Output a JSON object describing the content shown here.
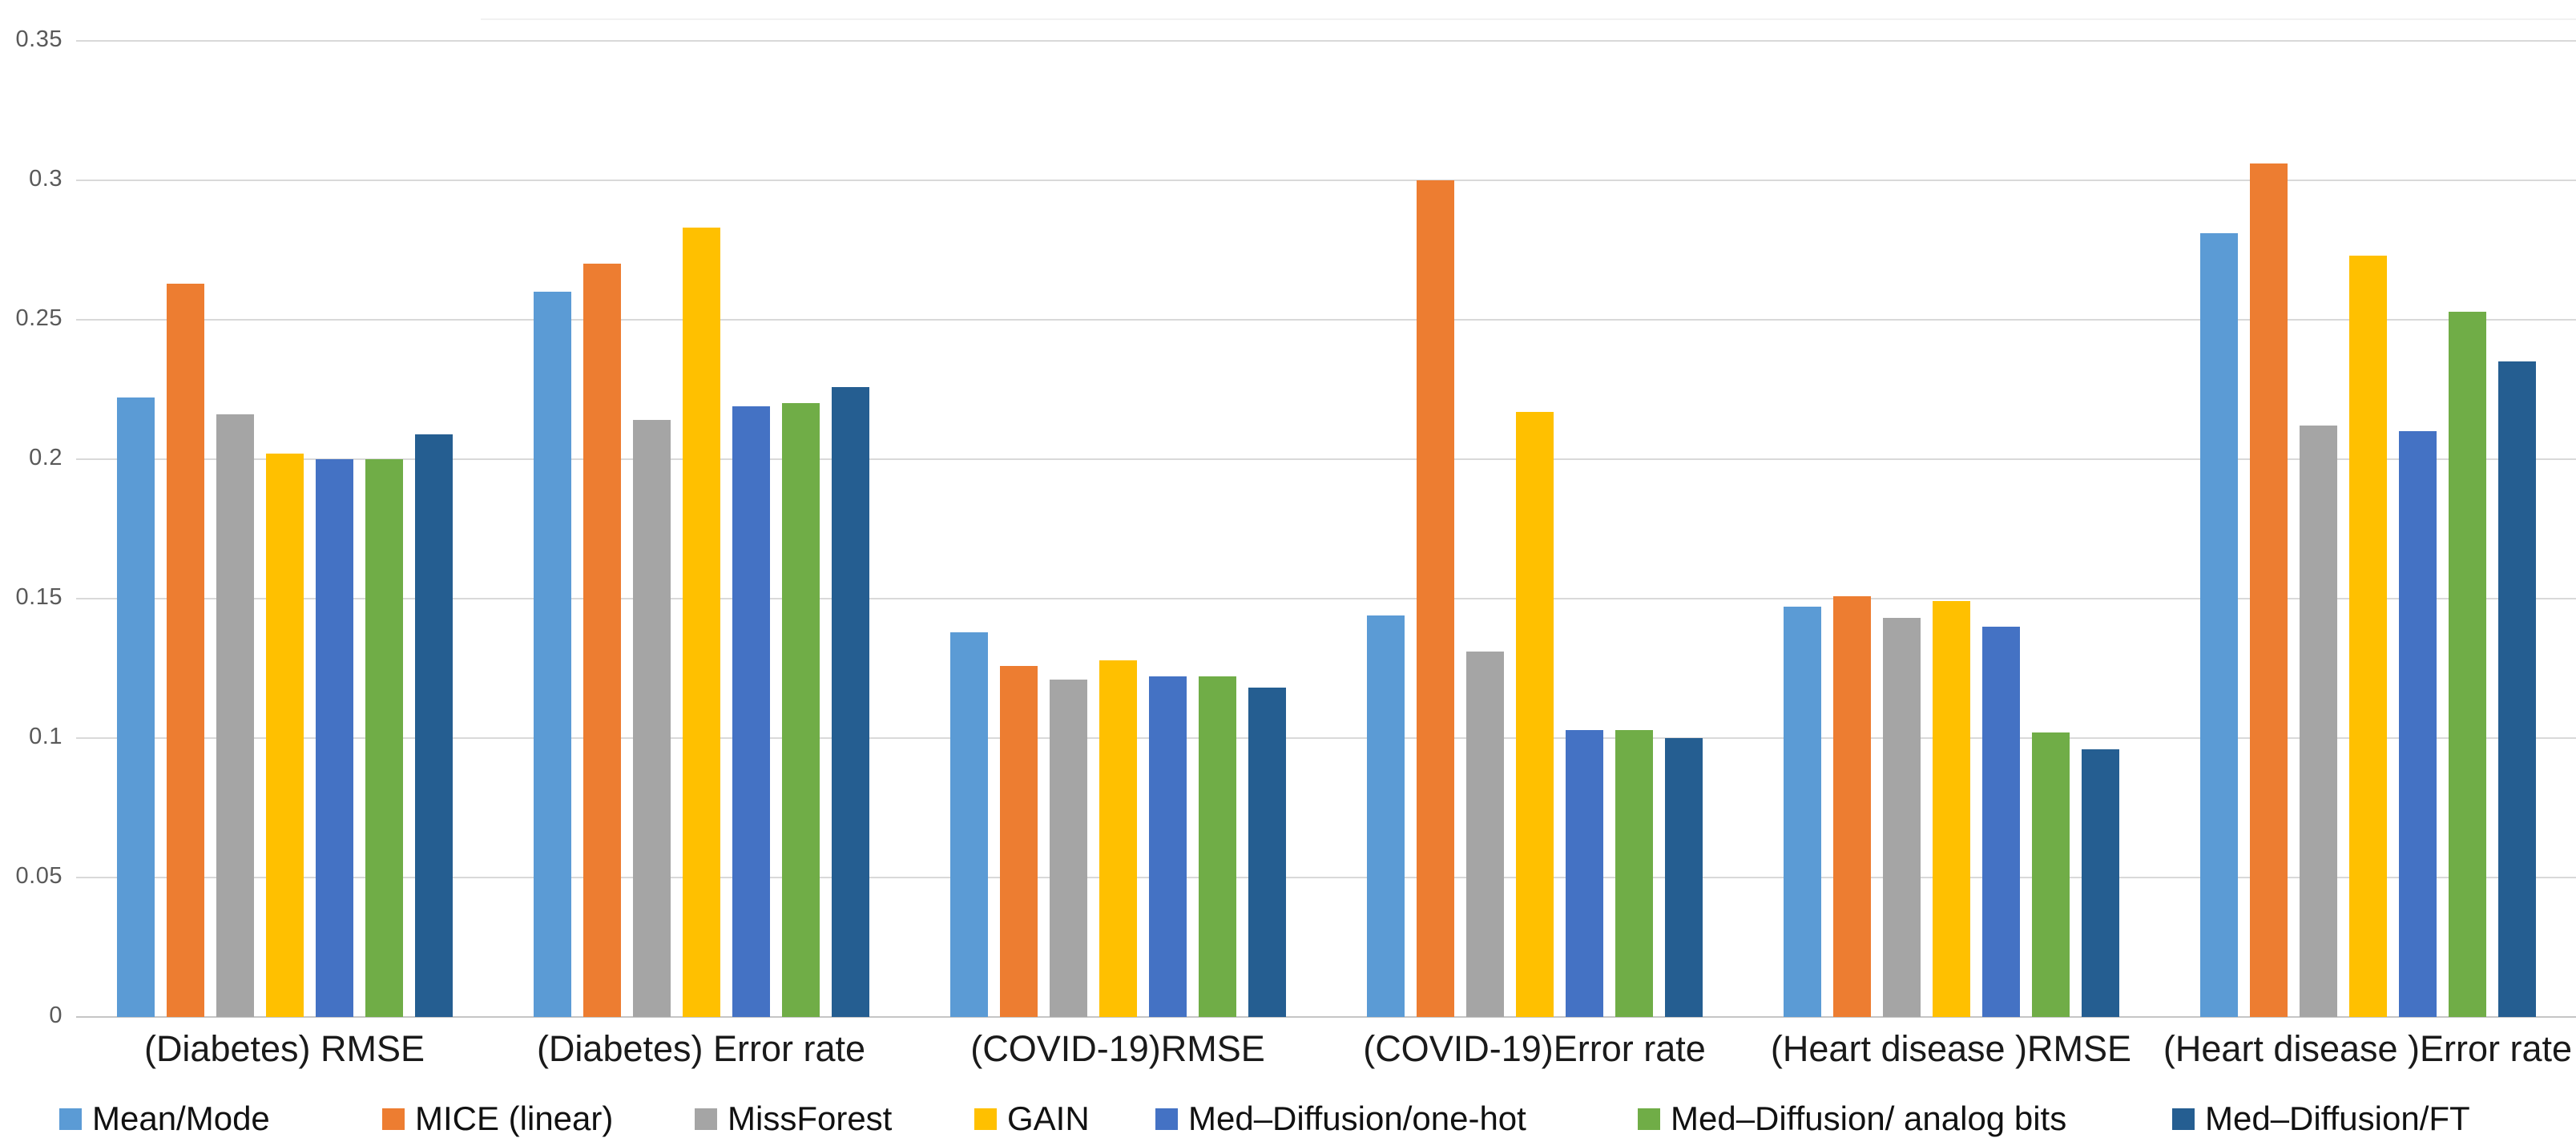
{
  "chart_data": {
    "type": "bar",
    "title": "",
    "xlabel": "",
    "ylabel": "",
    "ylim": [
      0,
      0.35
    ],
    "yticks": [
      0,
      0.05,
      0.1,
      0.15,
      0.2,
      0.25,
      0.3,
      0.35
    ],
    "ytick_labels": [
      "0",
      "0.05",
      "0.1",
      "0.15",
      "0.2",
      "0.25",
      "0.3",
      "0.35"
    ],
    "grid": true,
    "legend_position": "bottom",
    "categories": [
      "(Diabetes) RMSE",
      "(Diabetes) Error rate",
      "(COVID-19)RMSE",
      "(COVID-19)Error rate",
      "(Heart disease )RMSE",
      "(Heart disease )Error rate"
    ],
    "series": [
      {
        "name": "Mean/Mode",
        "color": "#5B9BD5",
        "values": [
          0.222,
          0.26,
          0.138,
          0.144,
          0.147,
          0.281
        ]
      },
      {
        "name": "MICE (linear)",
        "color": "#ED7D31",
        "values": [
          0.263,
          0.27,
          0.126,
          0.3,
          0.151,
          0.306
        ]
      },
      {
        "name": "MissForest",
        "color": "#A5A5A5",
        "values": [
          0.216,
          0.214,
          0.121,
          0.131,
          0.143,
          0.212
        ]
      },
      {
        "name": "GAIN",
        "color": "#FFC000",
        "values": [
          0.202,
          0.283,
          0.128,
          0.217,
          0.149,
          0.273
        ]
      },
      {
        "name": "Med–Diffusion/one-hot",
        "color": "#4472C4",
        "values": [
          0.2,
          0.219,
          0.122,
          0.103,
          0.14,
          0.21
        ]
      },
      {
        "name": "Med–Diffusion/ analog bits",
        "color": "#70AD47",
        "values": [
          0.2,
          0.22,
          0.122,
          0.103,
          0.102,
          0.253
        ]
      },
      {
        "name": "Med–Diffusion/FT",
        "color": "#255E91",
        "values": [
          0.209,
          0.226,
          0.118,
          0.1,
          0.096,
          0.235
        ]
      }
    ]
  },
  "ui_colors": {
    "background": "#ffffff",
    "gridline": "#d9d9d9",
    "axis_line": "#c6c6c6",
    "ytick_text": "#595959",
    "category_text": "#1a1a1a",
    "legend_text": "#111111"
  }
}
